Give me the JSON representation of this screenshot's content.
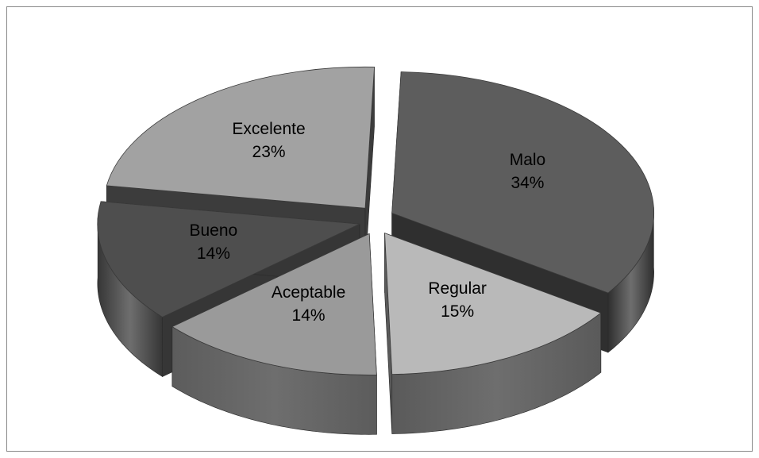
{
  "chart_data": {
    "type": "pie",
    "style": "3d-exploded",
    "legend": "none",
    "slices": [
      {
        "name": "Malo",
        "value": 34,
        "label": "34%",
        "top_color": "#5d5d5d",
        "side_color": "#2f2f2f"
      },
      {
        "name": "Regular",
        "value": 15,
        "label": "15%",
        "top_color": "#b9b9b9",
        "side_color": "#5a5a5a"
      },
      {
        "name": "Aceptable",
        "value": 14,
        "label": "14%",
        "top_color": "#9a9a9a",
        "side_color": "#5c5c5c"
      },
      {
        "name": "Bueno",
        "value": 14,
        "label": "14%",
        "top_color": "#4e4e4e",
        "side_color": "#363636"
      },
      {
        "name": "Excelente",
        "value": 23,
        "label": "23%",
        "top_color": "#a2a2a2",
        "side_color": "#3c3c3c"
      }
    ]
  }
}
